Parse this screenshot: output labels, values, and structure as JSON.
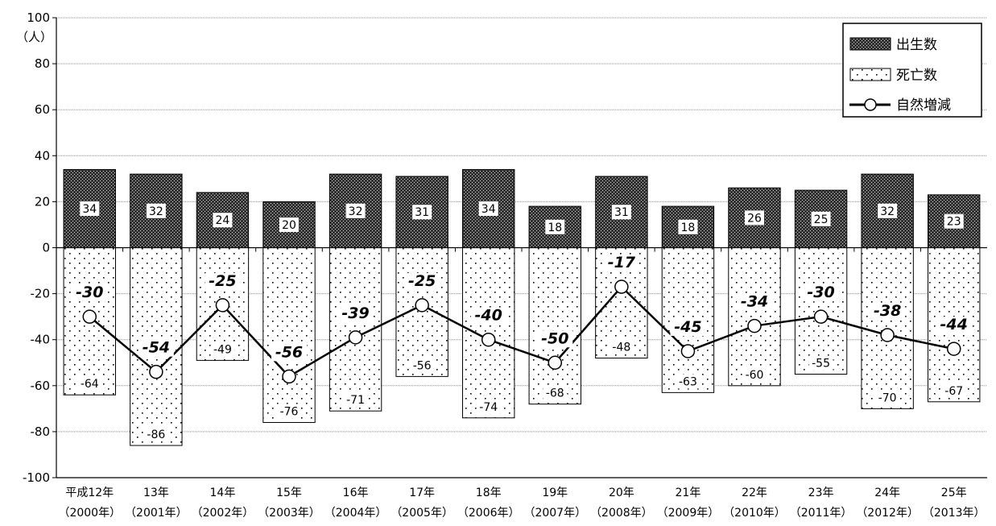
{
  "chart_data": {
    "type": "bar",
    "unit_label": "（人）",
    "ylim": [
      -100,
      100
    ],
    "y_ticks": [
      100,
      80,
      60,
      40,
      20,
      0,
      -20,
      -40,
      -60,
      -80,
      -100
    ],
    "grid": true,
    "legend_position": "top-right",
    "categories": [
      {
        "line1": "平成12年",
        "line2": "（2000年）"
      },
      {
        "line1": "13年",
        "line2": "（2001年）"
      },
      {
        "line1": "14年",
        "line2": "（2002年）"
      },
      {
        "line1": "15年",
        "line2": "（2003年）"
      },
      {
        "line1": "16年",
        "line2": "（2004年）"
      },
      {
        "line1": "17年",
        "line2": "（2005年）"
      },
      {
        "line1": "18年",
        "line2": "（2006年）"
      },
      {
        "line1": "19年",
        "line2": "（2007年）"
      },
      {
        "line1": "20年",
        "line2": "（2008年）"
      },
      {
        "line1": "21年",
        "line2": "（2009年）"
      },
      {
        "line1": "22年",
        "line2": "（2010年）"
      },
      {
        "line1": "23年",
        "line2": "（2011年）"
      },
      {
        "line1": "24年",
        "line2": "（2012年）"
      },
      {
        "line1": "25年",
        "line2": "（2013年）"
      }
    ],
    "series": [
      {
        "name": "出生数",
        "kind": "bar",
        "pattern": "dense-dots",
        "values": [
          34,
          32,
          24,
          20,
          32,
          31,
          34,
          18,
          31,
          18,
          26,
          25,
          32,
          23
        ]
      },
      {
        "name": "死亡数",
        "kind": "bar",
        "pattern": "sparse-dots",
        "values": [
          -64,
          -86,
          -49,
          -76,
          -71,
          -56,
          -74,
          -68,
          -48,
          -63,
          -60,
          -55,
          -70,
          -67
        ]
      },
      {
        "name": "自然増減",
        "kind": "line",
        "marker": "circle",
        "values": [
          -30,
          -54,
          -25,
          -56,
          -39,
          -25,
          -40,
          -50,
          -17,
          -45,
          -34,
          -30,
          -38,
          -44
        ]
      }
    ]
  }
}
